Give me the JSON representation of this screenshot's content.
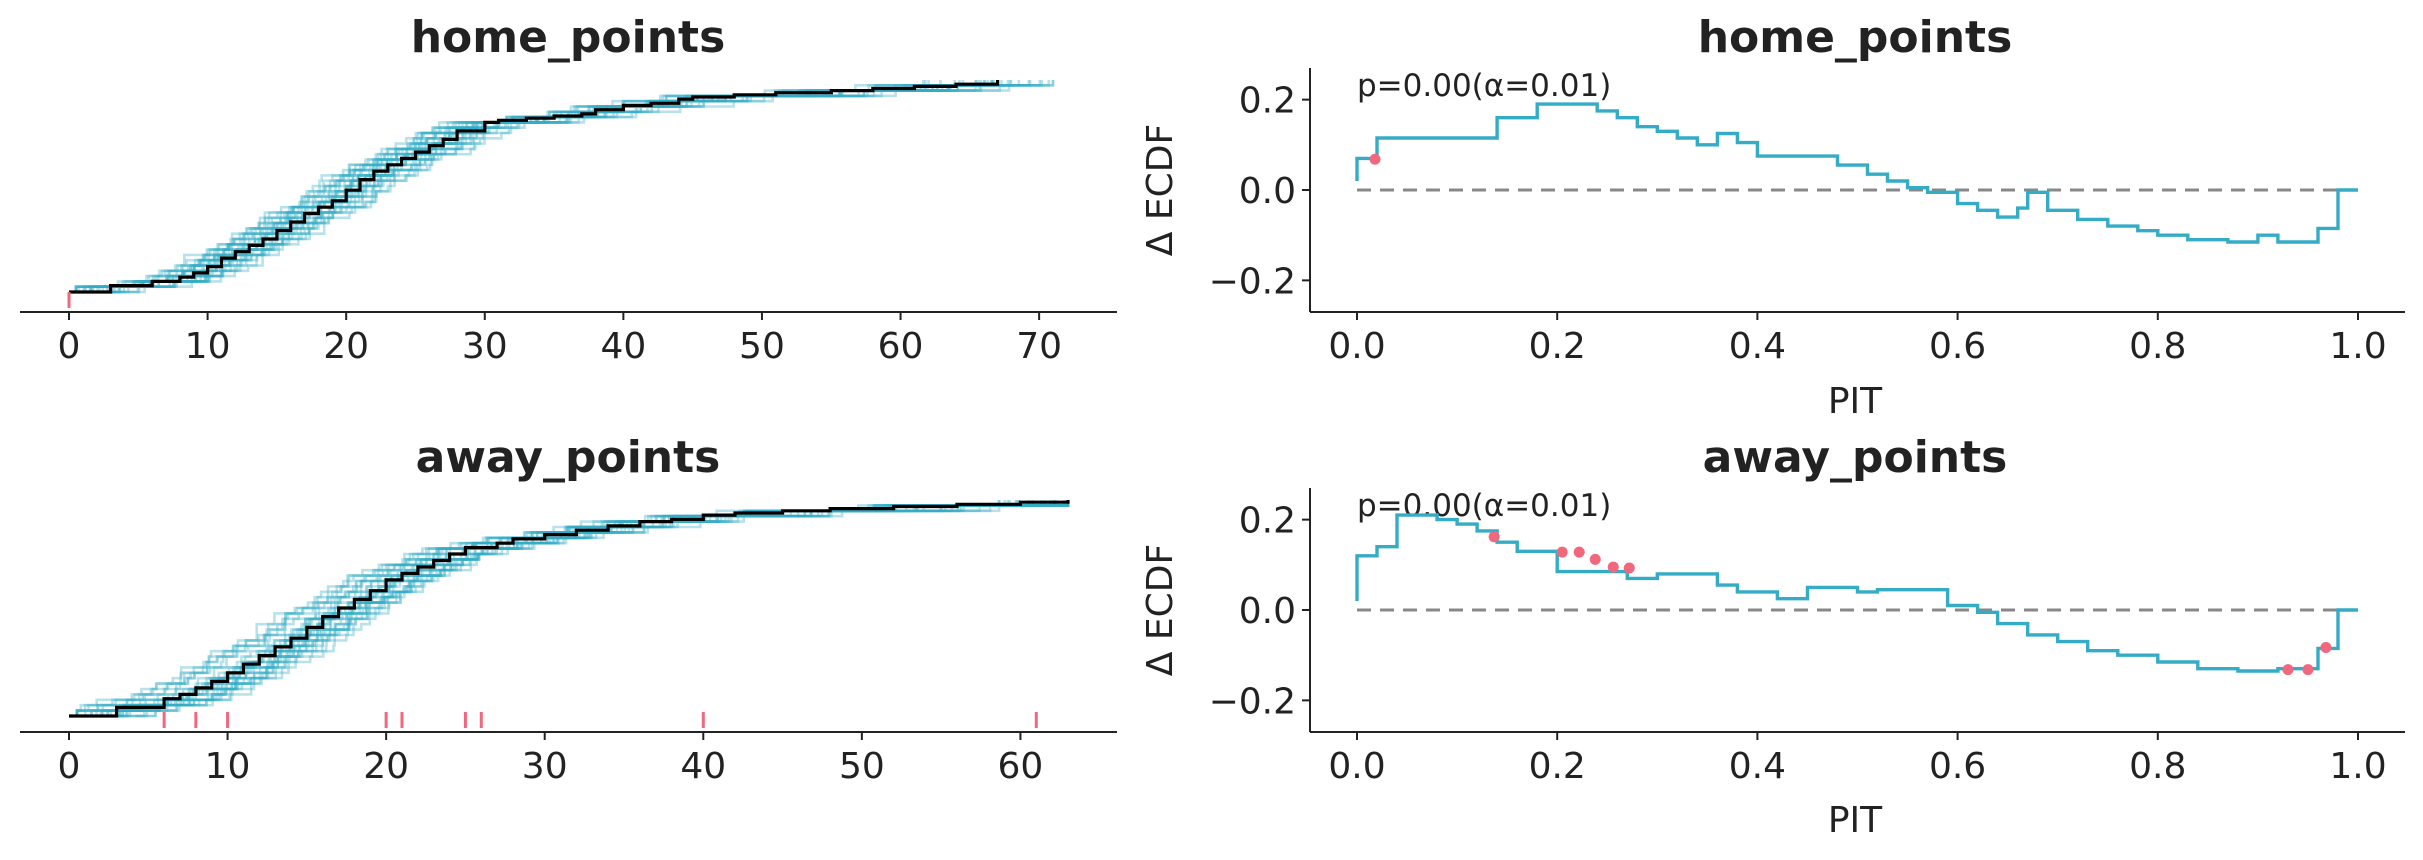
{
  "colors": {
    "predictive": "#35acc6",
    "observed": "#000000",
    "marker": "#f0677e",
    "reference": "#888888",
    "axis": "#222222"
  },
  "chart_data": [
    {
      "type": "line",
      "title": "home_points",
      "xlim": [
        0,
        71
      ],
      "xticks": [
        0,
        10,
        20,
        30,
        40,
        50,
        60,
        70
      ],
      "ylim": [
        0,
        1
      ],
      "observed_ecdf": {
        "x": [
          0,
          3,
          6,
          8,
          9,
          10,
          11,
          12,
          13,
          14,
          15,
          16,
          17,
          18,
          19,
          20,
          21,
          22,
          23,
          24,
          25,
          26,
          27,
          28,
          30,
          31,
          33,
          35,
          37,
          38,
          40,
          42,
          44,
          45,
          48,
          51,
          55,
          58,
          61,
          64,
          67
        ],
        "y": [
          0.0,
          0.03,
          0.05,
          0.07,
          0.09,
          0.12,
          0.16,
          0.19,
          0.22,
          0.25,
          0.29,
          0.33,
          0.37,
          0.4,
          0.43,
          0.48,
          0.53,
          0.57,
          0.6,
          0.63,
          0.66,
          0.69,
          0.72,
          0.76,
          0.8,
          0.81,
          0.82,
          0.83,
          0.84,
          0.86,
          0.88,
          0.89,
          0.91,
          0.92,
          0.93,
          0.94,
          0.95,
          0.96,
          0.97,
          0.98,
          1.0
        ]
      },
      "predictive_draws": 30,
      "rug_marks": [
        0
      ]
    },
    {
      "type": "line",
      "title": "home_points",
      "xlabel": "PIT",
      "ylabel": "Δ ECDF",
      "xlim": [
        0,
        1
      ],
      "ylim": [
        -0.27,
        0.27
      ],
      "xticks": [
        0.0,
        0.2,
        0.4,
        0.6,
        0.8,
        1.0
      ],
      "xtick_labels": [
        "0.0",
        "0.2",
        "0.4",
        "0.6",
        "0.8",
        "1.0"
      ],
      "yticks": [
        -0.2,
        0.0,
        0.2
      ],
      "ytick_labels": [
        "−0.2",
        "0.0",
        "0.2"
      ],
      "annotation": "p=0.00(α=0.01)",
      "reference_line": 0,
      "delta_ecdf": {
        "x": [
          0.0,
          0.0,
          0.02,
          0.02,
          0.14,
          0.14,
          0.18,
          0.18,
          0.24,
          0.24,
          0.26,
          0.26,
          0.28,
          0.28,
          0.3,
          0.3,
          0.32,
          0.32,
          0.34,
          0.34,
          0.36,
          0.36,
          0.38,
          0.38,
          0.4,
          0.4,
          0.48,
          0.48,
          0.51,
          0.51,
          0.53,
          0.53,
          0.55,
          0.55,
          0.57,
          0.57,
          0.6,
          0.6,
          0.62,
          0.62,
          0.64,
          0.64,
          0.66,
          0.66,
          0.67,
          0.67,
          0.69,
          0.69,
          0.72,
          0.72,
          0.75,
          0.75,
          0.78,
          0.78,
          0.8,
          0.8,
          0.83,
          0.83,
          0.87,
          0.87,
          0.9,
          0.9,
          0.92,
          0.92,
          0.96,
          0.96,
          0.98,
          0.98,
          1.0
        ],
        "y": [
          0.02,
          0.07,
          0.07,
          0.115,
          0.115,
          0.16,
          0.16,
          0.19,
          0.19,
          0.175,
          0.175,
          0.16,
          0.16,
          0.14,
          0.14,
          0.13,
          0.13,
          0.115,
          0.115,
          0.1,
          0.1,
          0.125,
          0.125,
          0.105,
          0.105,
          0.075,
          0.075,
          0.055,
          0.055,
          0.035,
          0.035,
          0.02,
          0.02,
          0.005,
          0.005,
          -0.005,
          -0.005,
          -0.03,
          -0.03,
          -0.045,
          -0.045,
          -0.06,
          -0.06,
          -0.04,
          -0.04,
          -0.005,
          -0.005,
          -0.045,
          -0.045,
          -0.065,
          -0.065,
          -0.08,
          -0.08,
          -0.09,
          -0.09,
          -0.1,
          -0.1,
          -0.11,
          -0.11,
          -0.115,
          -0.115,
          -0.1,
          -0.1,
          -0.115,
          -0.115,
          -0.085,
          -0.085,
          0.0,
          0.0
        ]
      },
      "markers": [
        {
          "x": 0.018,
          "y": 0.068
        }
      ]
    },
    {
      "type": "line",
      "title": "away_points",
      "xlim": [
        0,
        63
      ],
      "xticks": [
        0,
        10,
        20,
        30,
        40,
        50,
        60
      ],
      "ylim": [
        0,
        1
      ],
      "observed_ecdf": {
        "x": [
          0,
          3,
          6,
          7,
          8,
          9,
          10,
          11,
          12,
          13,
          14,
          15,
          16,
          17,
          18,
          19,
          20,
          21,
          22,
          23,
          24,
          25,
          27,
          28,
          30,
          32,
          34,
          36,
          38,
          40,
          42,
          45,
          48,
          52,
          56,
          60,
          63
        ],
        "y": [
          0.0,
          0.04,
          0.08,
          0.1,
          0.13,
          0.16,
          0.2,
          0.24,
          0.28,
          0.32,
          0.36,
          0.41,
          0.46,
          0.5,
          0.54,
          0.58,
          0.63,
          0.66,
          0.69,
          0.72,
          0.75,
          0.78,
          0.8,
          0.82,
          0.84,
          0.86,
          0.88,
          0.9,
          0.91,
          0.93,
          0.94,
          0.95,
          0.96,
          0.97,
          0.98,
          0.99,
          1.0
        ]
      },
      "predictive_draws": 30,
      "rug_marks": [
        6,
        8,
        10,
        20,
        21,
        25,
        26,
        40,
        61
      ]
    },
    {
      "type": "line",
      "title": "away_points",
      "xlabel": "PIT",
      "ylabel": "Δ ECDF",
      "xlim": [
        0,
        1
      ],
      "ylim": [
        -0.27,
        0.27
      ],
      "xticks": [
        0.0,
        0.2,
        0.4,
        0.6,
        0.8,
        1.0
      ],
      "xtick_labels": [
        "0.0",
        "0.2",
        "0.4",
        "0.6",
        "0.8",
        "1.0"
      ],
      "yticks": [
        -0.2,
        0.0,
        0.2
      ],
      "ytick_labels": [
        "−0.2",
        "0.0",
        "0.2"
      ],
      "annotation": "p=0.00(α=0.01)",
      "reference_line": 0,
      "delta_ecdf": {
        "x": [
          0.0,
          0.0,
          0.02,
          0.02,
          0.04,
          0.04,
          0.08,
          0.08,
          0.1,
          0.1,
          0.12,
          0.12,
          0.14,
          0.14,
          0.16,
          0.16,
          0.2,
          0.2,
          0.27,
          0.27,
          0.3,
          0.3,
          0.36,
          0.36,
          0.38,
          0.38,
          0.42,
          0.42,
          0.45,
          0.45,
          0.5,
          0.5,
          0.52,
          0.52,
          0.59,
          0.59,
          0.62,
          0.62,
          0.64,
          0.64,
          0.67,
          0.67,
          0.7,
          0.7,
          0.73,
          0.73,
          0.76,
          0.76,
          0.8,
          0.8,
          0.84,
          0.84,
          0.88,
          0.88,
          0.92,
          0.92,
          0.96,
          0.96,
          0.98,
          0.98,
          1.0
        ],
        "y": [
          0.02,
          0.12,
          0.12,
          0.14,
          0.14,
          0.21,
          0.21,
          0.2,
          0.2,
          0.19,
          0.19,
          0.175,
          0.175,
          0.15,
          0.15,
          0.13,
          0.13,
          0.085,
          0.085,
          0.07,
          0.07,
          0.08,
          0.08,
          0.055,
          0.055,
          0.04,
          0.04,
          0.025,
          0.025,
          0.05,
          0.05,
          0.04,
          0.04,
          0.045,
          0.045,
          0.01,
          0.01,
          -0.005,
          -0.005,
          -0.03,
          -0.03,
          -0.055,
          -0.055,
          -0.07,
          -0.07,
          -0.09,
          -0.09,
          -0.1,
          -0.1,
          -0.115,
          -0.115,
          -0.13,
          -0.13,
          -0.135,
          -0.135,
          -0.13,
          -0.13,
          -0.085,
          -0.085,
          0.0,
          0.0
        ]
      },
      "markers": [
        {
          "x": 0.137,
          "y": 0.162
        },
        {
          "x": 0.205,
          "y": 0.128
        },
        {
          "x": 0.222,
          "y": 0.128
        },
        {
          "x": 0.238,
          "y": 0.112
        },
        {
          "x": 0.256,
          "y": 0.095
        },
        {
          "x": 0.272,
          "y": 0.093
        },
        {
          "x": 0.93,
          "y": -0.132
        },
        {
          "x": 0.95,
          "y": -0.132
        },
        {
          "x": 0.968,
          "y": -0.083
        }
      ]
    }
  ]
}
